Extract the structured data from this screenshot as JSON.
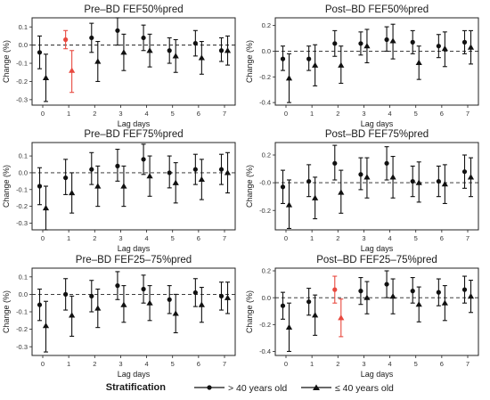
{
  "legend": {
    "title": "Stratification",
    "items": [
      {
        "label": "> 40 years old",
        "marker": "circle"
      },
      {
        "label": "≤ 40 years old",
        "marker": "triangle"
      }
    ]
  },
  "colors": {
    "normal": "#111111",
    "significant": "#e8493f"
  },
  "chart_data": [
    {
      "type": "errorbar",
      "title": "Pre–BD FEF50%pred",
      "xlabel": "Lag days",
      "ylabel": "Change (%)",
      "categories": [
        0,
        1,
        2,
        3,
        4,
        5,
        6,
        7
      ],
      "ylim": [
        -0.33,
        0.15
      ],
      "yticks": [
        -0.3,
        -0.2,
        -0.1,
        0.0,
        0.1
      ],
      "ytick_labels": [
        "-0.3",
        "-0.2",
        "-0.1",
        "0.0",
        "0.1"
      ],
      "reference_line": 0,
      "series": [
        {
          "marker": "circle",
          "estimate": [
            -0.04,
            0.03,
            0.04,
            0.08,
            0.04,
            -0.03,
            0.01,
            -0.03
          ],
          "lower": [
            -0.13,
            -0.02,
            -0.04,
            0.0,
            -0.03,
            -0.1,
            -0.06,
            -0.09
          ],
          "upper": [
            0.05,
            0.08,
            0.12,
            0.15,
            0.11,
            0.04,
            0.08,
            0.04
          ],
          "significant": [
            false,
            true,
            false,
            false,
            false,
            false,
            false,
            false
          ]
        },
        {
          "marker": "triangle",
          "estimate": [
            -0.18,
            -0.14,
            -0.09,
            -0.04,
            -0.03,
            -0.06,
            -0.07,
            -0.03
          ],
          "lower": [
            -0.31,
            -0.26,
            -0.2,
            -0.14,
            -0.12,
            -0.15,
            -0.16,
            -0.11
          ],
          "upper": [
            -0.05,
            -0.03,
            0.02,
            0.06,
            0.06,
            0.03,
            0.02,
            0.05
          ],
          "significant": [
            false,
            true,
            false,
            false,
            false,
            false,
            false,
            false
          ]
        }
      ]
    },
    {
      "type": "errorbar",
      "title": "Post–BD FEF50%pred",
      "xlabel": "Lag days",
      "ylabel": "Change (%)",
      "categories": [
        0,
        1,
        2,
        3,
        4,
        5,
        6,
        7
      ],
      "ylim": [
        -0.42,
        0.26
      ],
      "yticks": [
        -0.4,
        -0.2,
        0.0,
        0.2
      ],
      "ytick_labels": [
        "-0.4",
        "-0.2",
        "0.0",
        "0.2"
      ],
      "reference_line": 0,
      "series": [
        {
          "marker": "circle",
          "estimate": [
            -0.06,
            -0.06,
            0.06,
            0.06,
            0.09,
            0.07,
            0.04,
            0.07
          ],
          "lower": [
            -0.15,
            -0.15,
            -0.04,
            -0.03,
            0.0,
            -0.02,
            -0.05,
            -0.02
          ],
          "upper": [
            0.04,
            0.04,
            0.16,
            0.15,
            0.19,
            0.16,
            0.13,
            0.16
          ],
          "significant": [
            false,
            false,
            false,
            false,
            false,
            false,
            false,
            false
          ]
        },
        {
          "marker": "triangle",
          "estimate": [
            -0.21,
            -0.11,
            -0.11,
            0.04,
            0.08,
            -0.09,
            0.02,
            0.03
          ],
          "lower": [
            -0.4,
            -0.27,
            -0.25,
            -0.09,
            -0.06,
            -0.22,
            -0.12,
            -0.1
          ],
          "upper": [
            -0.02,
            0.05,
            0.04,
            0.17,
            0.21,
            0.04,
            0.15,
            0.16
          ],
          "significant": [
            false,
            false,
            false,
            false,
            false,
            false,
            false,
            false
          ]
        }
      ]
    },
    {
      "type": "errorbar",
      "title": "Pre–BD FEF75%pred",
      "xlabel": "Lag days",
      "ylabel": "Change (%)",
      "categories": [
        0,
        1,
        2,
        3,
        4,
        5,
        6,
        7
      ],
      "ylim": [
        -0.34,
        0.18
      ],
      "yticks": [
        -0.3,
        -0.2,
        -0.1,
        0.0,
        0.1
      ],
      "ytick_labels": [
        "-0.3",
        "-0.2",
        "-0.1",
        "0.0",
        "0.1"
      ],
      "reference_line": 0,
      "series": [
        {
          "marker": "circle",
          "estimate": [
            -0.08,
            -0.03,
            0.02,
            0.04,
            0.08,
            0.0,
            0.02,
            0.02
          ],
          "lower": [
            -0.19,
            -0.13,
            -0.07,
            -0.05,
            -0.01,
            -0.09,
            -0.07,
            -0.07
          ],
          "upper": [
            0.03,
            0.08,
            0.12,
            0.14,
            0.17,
            0.1,
            0.11,
            0.11
          ],
          "significant": [
            false,
            false,
            false,
            false,
            false,
            false,
            false,
            false
          ]
        },
        {
          "marker": "triangle",
          "estimate": [
            -0.21,
            -0.12,
            -0.08,
            -0.08,
            -0.02,
            -0.06,
            -0.04,
            0.0
          ],
          "lower": [
            -0.34,
            -0.24,
            -0.2,
            -0.2,
            -0.14,
            -0.18,
            -0.16,
            -0.12
          ],
          "upper": [
            -0.08,
            0.0,
            0.04,
            0.04,
            0.1,
            0.06,
            0.08,
            0.12
          ],
          "significant": [
            false,
            false,
            false,
            false,
            false,
            false,
            false,
            false
          ]
        }
      ]
    },
    {
      "type": "errorbar",
      "title": "Post–BD FEF75%pred",
      "xlabel": "Lag days",
      "ylabel": "Change (%)",
      "categories": [
        0,
        1,
        2,
        3,
        4,
        5,
        6,
        7
      ],
      "ylim": [
        -0.34,
        0.29
      ],
      "yticks": [
        -0.2,
        0.0,
        0.2
      ],
      "ytick_labels": [
        "-0.2",
        "-0.0",
        "0.2"
      ],
      "reference_line": 0,
      "series": [
        {
          "marker": "circle",
          "estimate": [
            -0.03,
            0.01,
            0.14,
            0.06,
            0.14,
            0.01,
            0.01,
            0.08
          ],
          "lower": [
            -0.15,
            -0.1,
            0.02,
            -0.05,
            0.02,
            -0.1,
            -0.1,
            -0.04
          ],
          "upper": [
            0.09,
            0.13,
            0.27,
            0.18,
            0.26,
            0.12,
            0.12,
            0.2
          ],
          "significant": [
            false,
            false,
            false,
            false,
            false,
            false,
            false,
            false
          ]
        },
        {
          "marker": "triangle",
          "estimate": [
            -0.16,
            -0.11,
            -0.07,
            0.04,
            0.04,
            0.0,
            -0.01,
            0.04
          ],
          "lower": [
            -0.33,
            -0.26,
            -0.22,
            -0.11,
            -0.11,
            -0.14,
            -0.15,
            -0.1
          ],
          "upper": [
            0.02,
            0.04,
            0.09,
            0.18,
            0.19,
            0.15,
            0.13,
            0.18
          ],
          "significant": [
            false,
            false,
            false,
            false,
            false,
            false,
            false,
            false
          ]
        }
      ]
    },
    {
      "type": "errorbar",
      "title": "Pre–BD FEF25–75%pred",
      "xlabel": "Lag days",
      "ylabel": "Change (%)",
      "categories": [
        0,
        1,
        2,
        3,
        4,
        5,
        6,
        7
      ],
      "ylim": [
        -0.35,
        0.15
      ],
      "yticks": [
        -0.3,
        -0.2,
        -0.1,
        0.0,
        0.1
      ],
      "ytick_labels": [
        "-0.3",
        "-0.2",
        "-0.1",
        "0.0",
        "0.1"
      ],
      "reference_line": 0,
      "series": [
        {
          "marker": "circle",
          "estimate": [
            -0.06,
            0.0,
            -0.01,
            0.05,
            0.03,
            -0.03,
            0.01,
            -0.01
          ],
          "lower": [
            -0.15,
            -0.09,
            -0.1,
            -0.03,
            -0.05,
            -0.11,
            -0.07,
            -0.09
          ],
          "upper": [
            0.03,
            0.09,
            0.08,
            0.13,
            0.11,
            0.05,
            0.09,
            0.07
          ],
          "significant": [
            false,
            false,
            false,
            false,
            false,
            false,
            false,
            false
          ]
        },
        {
          "marker": "triangle",
          "estimate": [
            -0.18,
            -0.12,
            -0.08,
            -0.06,
            -0.05,
            -0.11,
            -0.06,
            -0.02
          ],
          "lower": [
            -0.33,
            -0.24,
            -0.19,
            -0.16,
            -0.15,
            -0.22,
            -0.16,
            -0.11
          ],
          "upper": [
            -0.04,
            -0.01,
            0.03,
            0.05,
            0.05,
            0.0,
            0.04,
            0.07
          ],
          "significant": [
            false,
            false,
            false,
            false,
            false,
            false,
            false,
            false
          ]
        }
      ]
    },
    {
      "type": "errorbar",
      "title": "Post–BD FEF25–75%pred",
      "xlabel": "Lag days",
      "ylabel": "Change (%)",
      "categories": [
        0,
        1,
        2,
        3,
        4,
        5,
        6,
        7
      ],
      "ylim": [
        -0.43,
        0.22
      ],
      "yticks": [
        -0.4,
        -0.2,
        0.0,
        0.2
      ],
      "ytick_labels": [
        "-0.4",
        "-0.2",
        "0.0",
        "0.2"
      ],
      "reference_line": 0,
      "series": [
        {
          "marker": "circle",
          "estimate": [
            -0.06,
            -0.03,
            0.06,
            0.05,
            0.1,
            0.05,
            0.04,
            0.06
          ],
          "lower": [
            -0.16,
            -0.13,
            -0.04,
            -0.05,
            0.0,
            -0.04,
            -0.06,
            -0.04
          ],
          "upper": [
            0.04,
            0.07,
            0.16,
            0.15,
            0.2,
            0.15,
            0.14,
            0.16
          ],
          "significant": [
            false,
            false,
            true,
            false,
            false,
            false,
            false,
            false
          ]
        },
        {
          "marker": "triangle",
          "estimate": [
            -0.22,
            -0.13,
            -0.15,
            0.0,
            0.01,
            -0.05,
            -0.04,
            0.01
          ],
          "lower": [
            -0.4,
            -0.28,
            -0.29,
            -0.12,
            -0.12,
            -0.18,
            -0.17,
            -0.11
          ],
          "upper": [
            -0.04,
            0.02,
            -0.01,
            0.12,
            0.14,
            0.08,
            0.09,
            0.13
          ],
          "significant": [
            false,
            false,
            true,
            false,
            false,
            false,
            false,
            false
          ]
        }
      ]
    }
  ]
}
